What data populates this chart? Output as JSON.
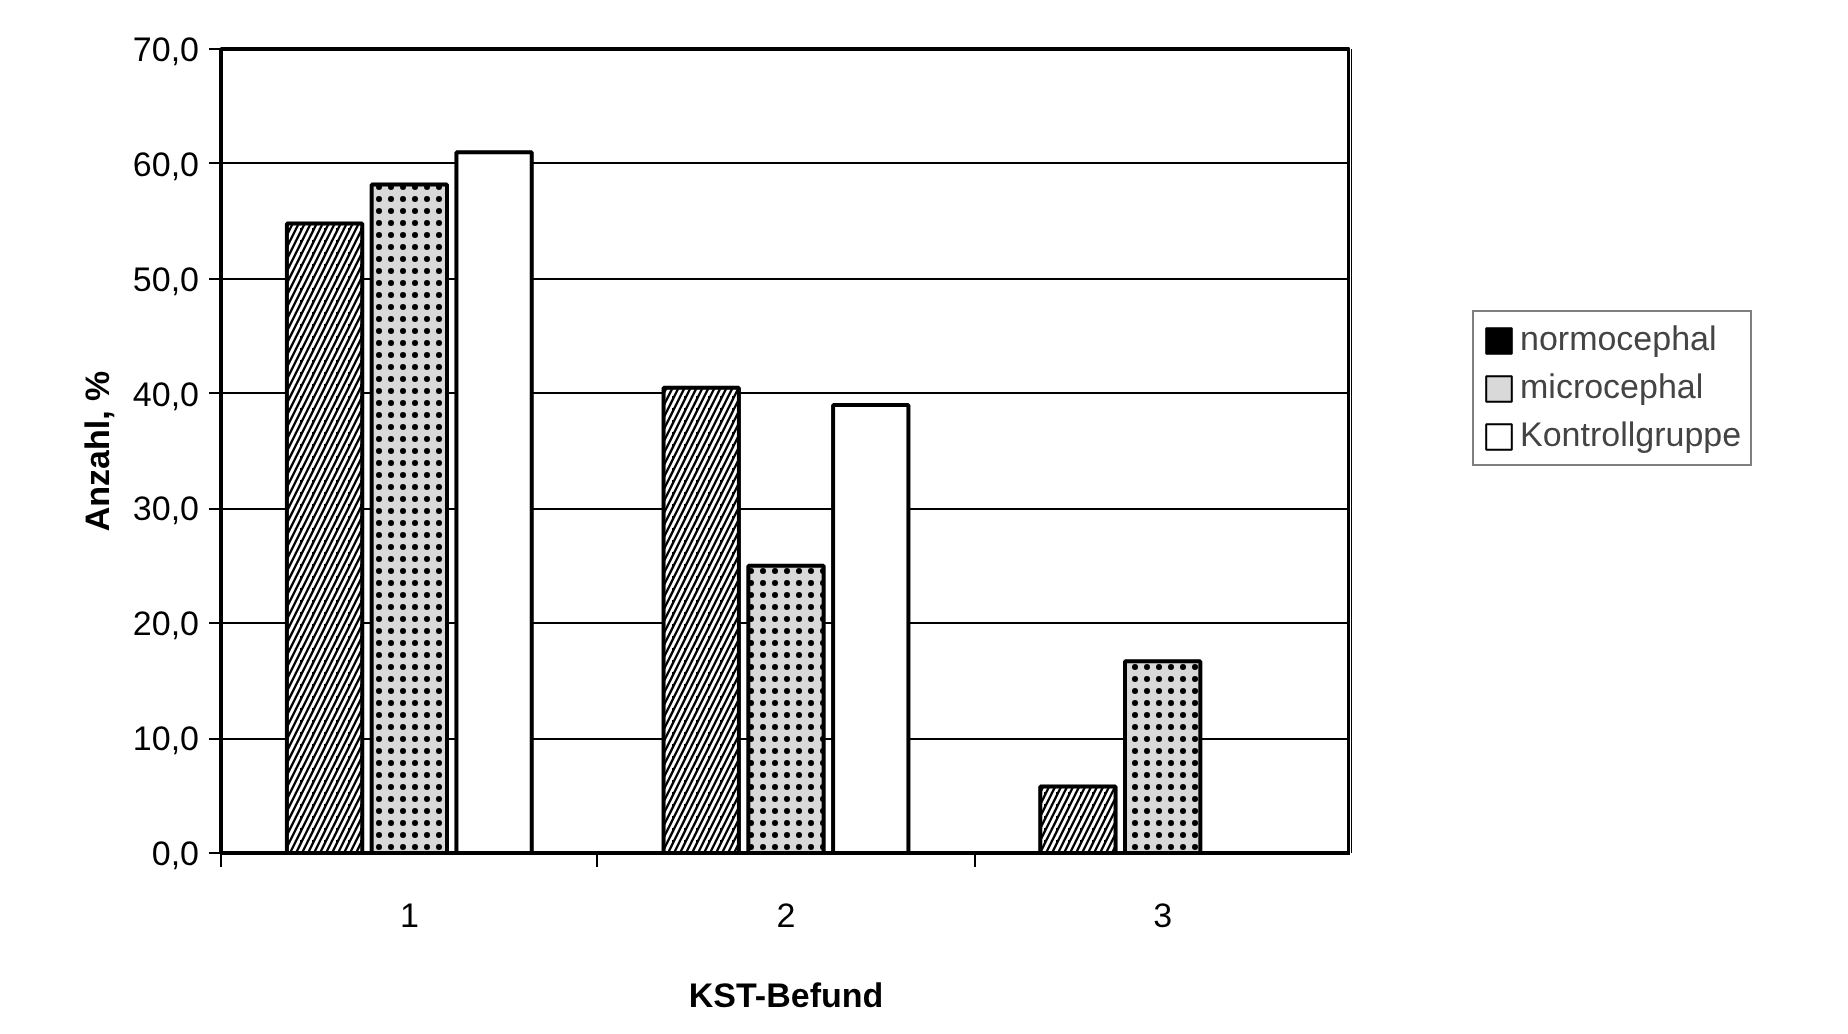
{
  "chart_data": {
    "type": "bar",
    "xlabel": "KST-Befund",
    "ylabel": "Anzahl, %",
    "categories": [
      "1",
      "2",
      "3"
    ],
    "series": [
      {
        "name": "normocephal",
        "color": "#000000",
        "values": [
          54.8,
          40.5,
          5.8
        ]
      },
      {
        "name": "microcephal",
        "color": "#d9d9d9",
        "values": [
          58.2,
          25.0,
          16.7
        ]
      },
      {
        "name": "Kontrollgruppe",
        "color": "#ffffff",
        "values": [
          61.0,
          39.0,
          0.0
        ]
      }
    ],
    "ylim": [
      0,
      70
    ],
    "yticks": [
      {
        "value": 0,
        "label": "0,0"
      },
      {
        "value": 10,
        "label": "10,0"
      },
      {
        "value": 20,
        "label": "20,0"
      },
      {
        "value": 30,
        "label": "30,0"
      },
      {
        "value": 40,
        "label": "40,0"
      },
      {
        "value": 50,
        "label": "50,0"
      },
      {
        "value": 60,
        "label": "60,0"
      },
      {
        "value": 70,
        "label": "70,0"
      }
    ],
    "grid": "y",
    "legend": "right"
  }
}
